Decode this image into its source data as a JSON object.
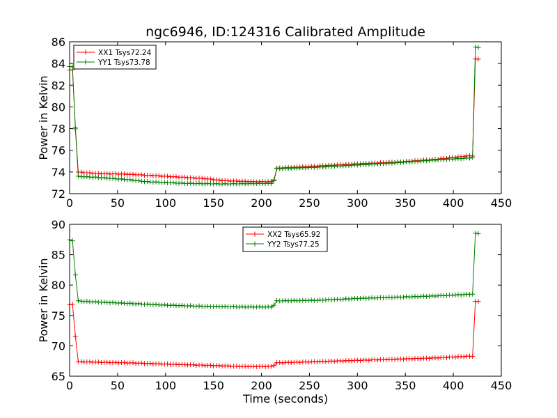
{
  "figure": {
    "title": "ngc6946, ID:124316 Calibrated Amplitude",
    "xlabel": "Time (seconds)"
  },
  "chart_data": [
    {
      "type": "line",
      "title": "ngc6946, ID:124316 Calibrated Amplitude",
      "xlabel": "",
      "ylabel": "Power in Kelvin",
      "xlim": [
        0,
        450
      ],
      "ylim": [
        72,
        86
      ],
      "xticks": [
        "0",
        "50",
        "100",
        "150",
        "200",
        "250",
        "300",
        "350",
        "400",
        "450"
      ],
      "yticks": [
        "72",
        "74",
        "76",
        "78",
        "80",
        "82",
        "84",
        "86"
      ],
      "grid": false,
      "legend": "top-left",
      "series": [
        {
          "name": "XX1 Tsys72.24",
          "color": "#ff0000",
          "anchors": [
            [
              0,
              83.4
            ],
            [
              3,
              83.4
            ],
            [
              5,
              82.2
            ],
            [
              7,
              74.0
            ],
            [
              30,
              73.85
            ],
            [
              60,
              73.8
            ],
            [
              100,
              73.6
            ],
            [
              140,
              73.4
            ],
            [
              160,
              73.2
            ],
            [
              190,
              73.1
            ],
            [
              210,
              73.1
            ],
            [
              213,
              73.3
            ],
            [
              216,
              74.35
            ],
            [
              260,
              74.55
            ],
            [
              300,
              74.75
            ],
            [
              340,
              74.9
            ],
            [
              380,
              75.15
            ],
            [
              418,
              75.5
            ],
            [
              420,
              75.5
            ],
            [
              421,
              79.2
            ],
            [
              423,
              84.4
            ],
            [
              426,
              84.4
            ]
          ]
        },
        {
          "name": "YY1 Tsys73.78",
          "color": "#008000",
          "anchors": [
            [
              0,
              83.7
            ],
            [
              3,
              83.7
            ],
            [
              5,
              82.4
            ],
            [
              7,
              73.6
            ],
            [
              30,
              73.5
            ],
            [
              60,
              73.3
            ],
            [
              80,
              73.1
            ],
            [
              120,
              72.95
            ],
            [
              160,
              72.9
            ],
            [
              210,
              72.95
            ],
            [
              213,
              73.2
            ],
            [
              216,
              74.3
            ],
            [
              260,
              74.45
            ],
            [
              300,
              74.65
            ],
            [
              340,
              74.85
            ],
            [
              380,
              75.1
            ],
            [
              418,
              75.3
            ],
            [
              420,
              75.35
            ],
            [
              421,
              79.3
            ],
            [
              423,
              85.5
            ],
            [
              426,
              85.5
            ]
          ]
        }
      ]
    },
    {
      "type": "line",
      "title": "",
      "xlabel": "Time (seconds)",
      "ylabel": "Power in Kelvin",
      "xlim": [
        0,
        450
      ],
      "ylim": [
        65,
        90
      ],
      "xticks": [
        "0",
        "50",
        "100",
        "150",
        "200",
        "250",
        "300",
        "350",
        "400",
        "450"
      ],
      "yticks": [
        "65",
        "70",
        "75",
        "80",
        "85",
        "90"
      ],
      "grid": false,
      "legend": "top-center",
      "series": [
        {
          "name": "XX2 Tsys65.92",
          "color": "#ff0000",
          "anchors": [
            [
              0,
              76.8
            ],
            [
              3,
              76.8
            ],
            [
              5,
              75.8
            ],
            [
              7,
              67.4
            ],
            [
              30,
              67.3
            ],
            [
              60,
              67.2
            ],
            [
              100,
              67.0
            ],
            [
              140,
              66.8
            ],
            [
              180,
              66.6
            ],
            [
              210,
              66.6
            ],
            [
              213,
              66.8
            ],
            [
              216,
              67.2
            ],
            [
              260,
              67.4
            ],
            [
              300,
              67.6
            ],
            [
              340,
              67.8
            ],
            [
              380,
              68.0
            ],
            [
              418,
              68.3
            ],
            [
              420,
              68.3
            ],
            [
              421,
              71.8
            ],
            [
              423,
              77.3
            ],
            [
              426,
              77.3
            ]
          ]
        },
        {
          "name": "YY2 Tsys77.25",
          "color": "#008000",
          "anchors": [
            [
              0,
              87.4
            ],
            [
              3,
              87.3
            ],
            [
              5,
              86.0
            ],
            [
              7,
              77.4
            ],
            [
              30,
              77.2
            ],
            [
              60,
              77.0
            ],
            [
              100,
              76.7
            ],
            [
              140,
              76.5
            ],
            [
              180,
              76.4
            ],
            [
              210,
              76.4
            ],
            [
              213,
              76.7
            ],
            [
              216,
              77.4
            ],
            [
              260,
              77.5
            ],
            [
              300,
              77.8
            ],
            [
              340,
              78.0
            ],
            [
              380,
              78.2
            ],
            [
              418,
              78.5
            ],
            [
              420,
              78.5
            ],
            [
              421,
              82.5
            ],
            [
              423,
              88.5
            ],
            [
              426,
              88.5
            ]
          ]
        }
      ]
    }
  ]
}
